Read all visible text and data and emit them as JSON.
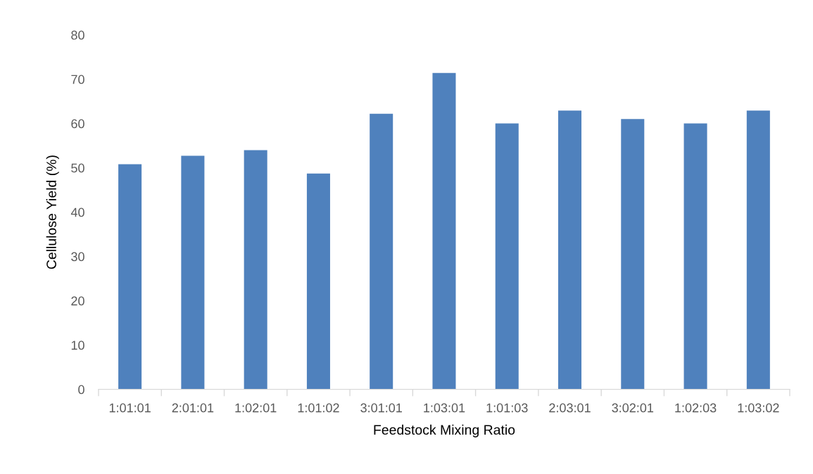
{
  "chart_data": {
    "type": "bar",
    "xlabel": "Feedstock Mixing Ratio",
    "ylabel": "Cellulose Yield (%)",
    "categories": [
      "1:01:01",
      "2:01:01",
      "1:02:01",
      "1:01:02",
      "3:01:01",
      "1:03:01",
      "1:01:03",
      "2:03:01",
      "3:02:01",
      "1:02:03",
      "1:03:02"
    ],
    "values": [
      50.8,
      52.7,
      54.0,
      48.7,
      62.2,
      71.4,
      60.0,
      62.9,
      61.0,
      60.0,
      62.9
    ],
    "color": "#4f81bd",
    "ylim": [
      0,
      80
    ],
    "yticks": [
      0,
      10,
      20,
      30,
      40,
      50,
      60,
      70,
      80
    ],
    "grid": false
  }
}
